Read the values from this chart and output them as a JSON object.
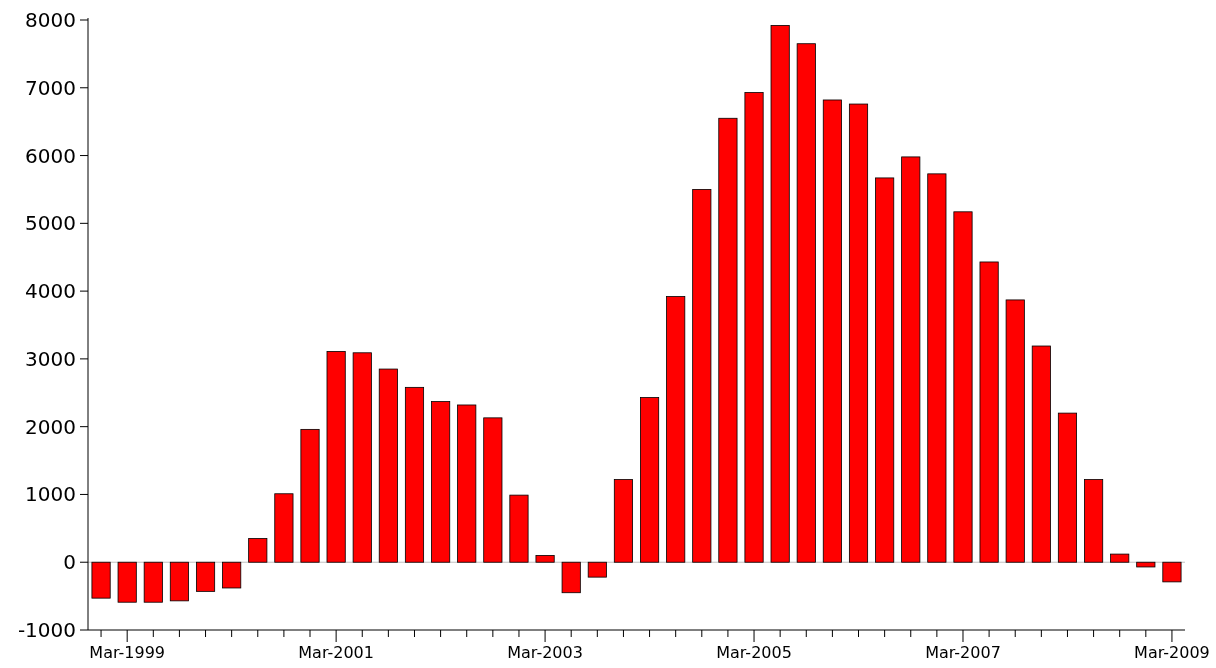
{
  "chart_data": {
    "type": "bar",
    "categories": [
      null,
      "Mar-1999",
      null,
      null,
      null,
      null,
      null,
      null,
      null,
      "Mar-2001",
      null,
      null,
      null,
      null,
      null,
      null,
      null,
      "Mar-2003",
      null,
      null,
      null,
      null,
      null,
      null,
      null,
      "Mar-2005",
      null,
      null,
      null,
      null,
      null,
      null,
      null,
      "Mar-2007",
      null,
      null,
      null,
      null,
      null,
      null,
      null,
      "Mar-2009"
    ],
    "values": [
      -530,
      -590,
      -590,
      -570,
      -430,
      -380,
      350,
      1010,
      1960,
      3110,
      3090,
      2850,
      2580,
      2370,
      2320,
      2130,
      990,
      100,
      -450,
      -220,
      1220,
      2430,
      3920,
      5500,
      6550,
      6930,
      7920,
      7650,
      6820,
      6760,
      5670,
      5980,
      5730,
      5170,
      4430,
      3870,
      3190,
      2200,
      1220,
      120,
      -70,
      -290
    ],
    "color": "#ff0000",
    "ylim": [
      -1000,
      8000
    ],
    "yticks": [
      -1000,
      0,
      1000,
      2000,
      3000,
      4000,
      5000,
      6000,
      7000,
      8000
    ],
    "ref_lines": [
      {
        "axis": "y",
        "value": 0,
        "color": "#c0c0c0"
      }
    ]
  }
}
